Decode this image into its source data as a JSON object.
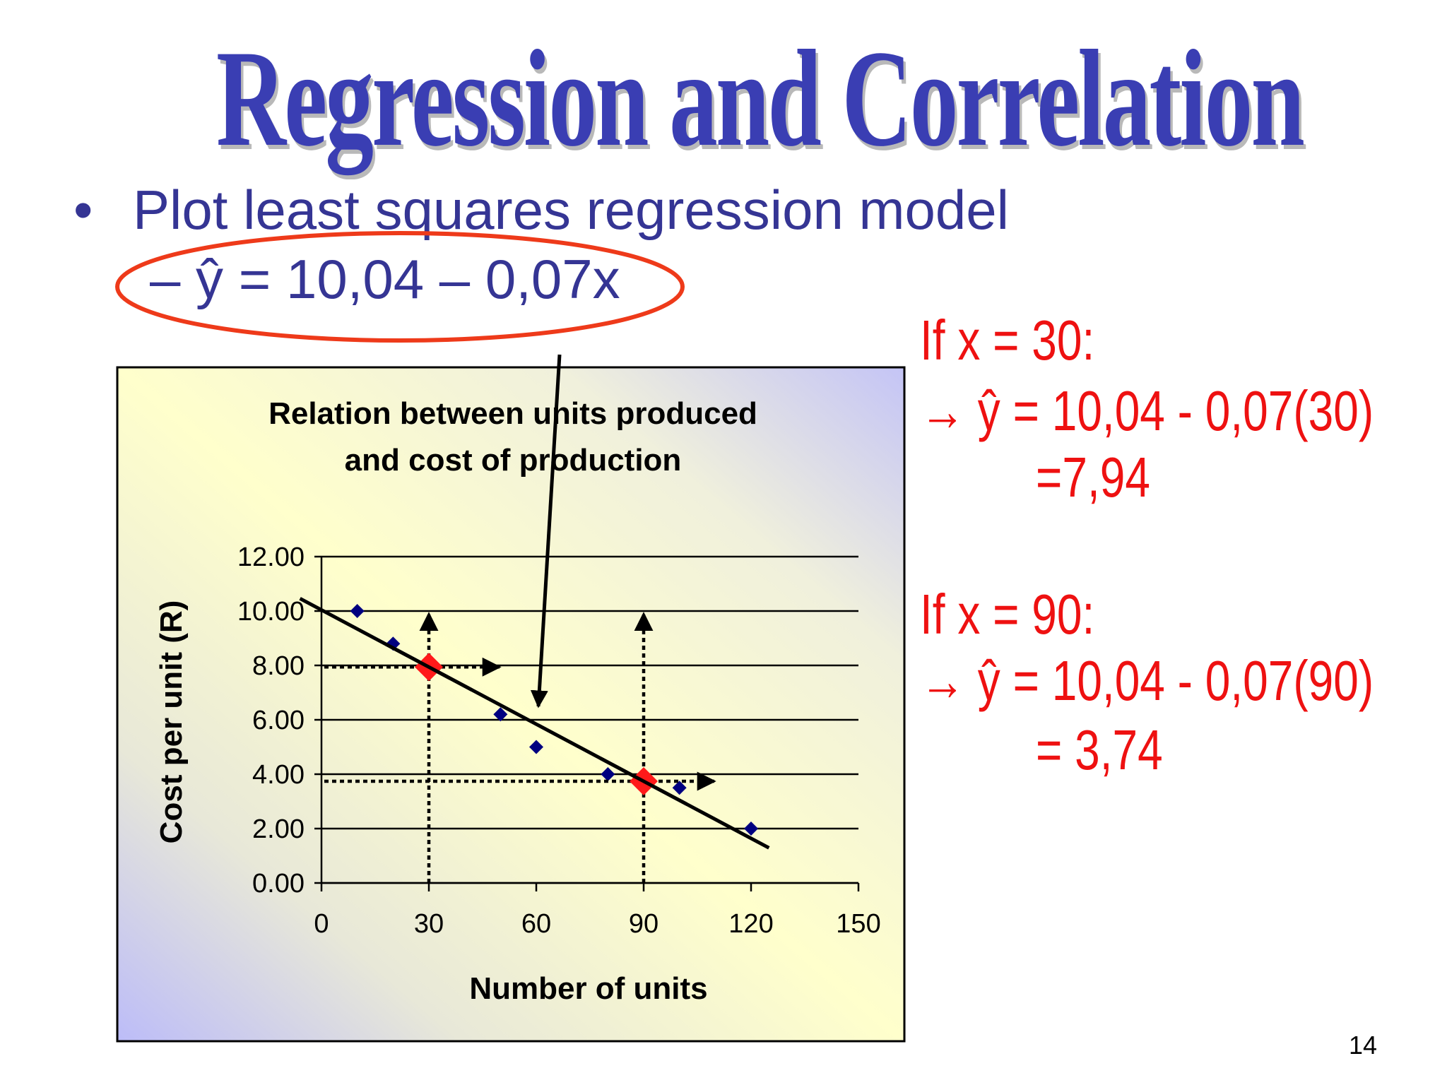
{
  "slide": {
    "title": "Regression and Correlation",
    "bullet_marker": "•",
    "bullet": "Plot least squares regression model",
    "sub_bullet": "– ŷ = 10,04 – 0,07x",
    "page_number": "14"
  },
  "annotations": {
    "case1_heading": "If x = 30:",
    "case1_formula": "→ ŷ = 10,04 - 0,07(30)",
    "case1_result": "=7,94",
    "case2_heading": "If x = 90:",
    "case2_formula": "→ ŷ = 10,04 - 0,07(90)",
    "case2_result": "= 3,74"
  },
  "colors": {
    "title": "#3a3eb3",
    "body_text": "#353594",
    "annotation": "#ee1111",
    "ellipse": "#ee3a1a",
    "data_point": "#000080",
    "predicted_point": "#ff1a1a"
  },
  "chart_data": {
    "type": "scatter",
    "title": "Relation between units produced and cost of production",
    "title_lines": [
      "Relation between units produced",
      "and cost of production"
    ],
    "xlabel": "Number of units",
    "ylabel": "Cost per unit (R)",
    "xlim": [
      0,
      150
    ],
    "ylim": [
      0,
      12
    ],
    "x_ticks": [
      0,
      30,
      60,
      90,
      120,
      150
    ],
    "y_ticks": [
      0,
      2,
      4,
      6,
      8,
      10,
      12
    ],
    "y_tick_labels": [
      "0.00",
      "2.00",
      "4.00",
      "6.00",
      "8.00",
      "10.00",
      "12.00"
    ],
    "grid": "horizontal",
    "x": [
      10,
      20,
      50,
      60,
      80,
      100,
      120
    ],
    "y": [
      10.0,
      8.8,
      6.2,
      5.0,
      4.0,
      3.5,
      2.0
    ],
    "regression_line": {
      "intercept": 10.04,
      "slope": -0.07,
      "x_range": [
        -6,
        125
      ]
    },
    "predicted_points": [
      {
        "x": 30,
        "y": 7.94
      },
      {
        "x": 90,
        "y": 3.74
      }
    ]
  }
}
